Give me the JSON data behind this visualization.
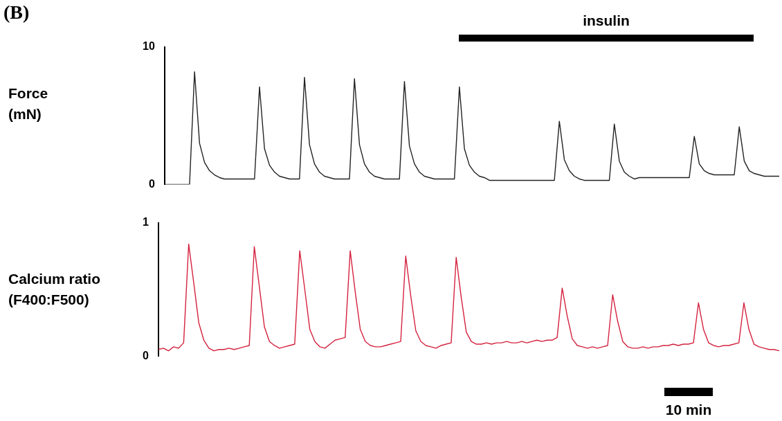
{
  "chart_data": [
    {
      "type": "line",
      "title": "(B)",
      "ylabel": "Force\n(mN)",
      "ylim": [
        0,
        10
      ],
      "yticks": [
        0,
        10
      ],
      "tick_labels": "y",
      "marker": "none",
      "line_style": "solid",
      "annotations": [
        "insulin"
      ],
      "categories": [
        null,
        null,
        null,
        null,
        null,
        null,
        null,
        null,
        null,
        null,
        null,
        null,
        null,
        null,
        null,
        null,
        null,
        null,
        null,
        null,
        null,
        null,
        null,
        null,
        null,
        null,
        null,
        null,
        null,
        null,
        null,
        null,
        null,
        null,
        null,
        null,
        null,
        null,
        null,
        null,
        null,
        null,
        null,
        null,
        null,
        null,
        null,
        null,
        null,
        null,
        null,
        null,
        null,
        null,
        null,
        null,
        null,
        null,
        null,
        null,
        null,
        null,
        null,
        null,
        null,
        null,
        null,
        null,
        null,
        null,
        null,
        null,
        null,
        null,
        null,
        null,
        null,
        null,
        null,
        null,
        null,
        null,
        null,
        null,
        null,
        null,
        null,
        null,
        null,
        null,
        null,
        null,
        null,
        null,
        null,
        null,
        null,
        null,
        null,
        null,
        null,
        null,
        null,
        null,
        null,
        null,
        null,
        null,
        null,
        null,
        null,
        null,
        null,
        null,
        null,
        null,
        null,
        null,
        null,
        null,
        null,
        null,
        null,
        null
      ],
      "series": [
        {
          "color": "#222222",
          "values": [
            0,
            0,
            0,
            0,
            0,
            0,
            8.2,
            3.0,
            1.6,
            1.0,
            0.7,
            0.5,
            0.4,
            0.4,
            0.4,
            0.4,
            0.4,
            0.4,
            0.4,
            7.1,
            2.6,
            1.4,
            0.9,
            0.6,
            0.5,
            0.4,
            0.4,
            0.4,
            7.8,
            2.9,
            1.5,
            0.9,
            0.6,
            0.5,
            0.4,
            0.4,
            0.4,
            0.4,
            7.7,
            2.9,
            1.5,
            0.9,
            0.6,
            0.5,
            0.4,
            0.4,
            0.4,
            0.4,
            7.5,
            2.8,
            1.5,
            0.9,
            0.6,
            0.5,
            0.4,
            0.4,
            0.4,
            0.4,
            0.4,
            7.1,
            2.6,
            1.4,
            0.9,
            0.6,
            0.5,
            0.3,
            0.3,
            0.3,
            0.3,
            0.3,
            0.3,
            0.3,
            0.3,
            0.3,
            0.3,
            0.3,
            0.3,
            0.3,
            0.3,
            4.6,
            1.8,
            1.0,
            0.6,
            0.4,
            0.3,
            0.3,
            0.3,
            0.3,
            0.3,
            0.3,
            4.4,
            1.7,
            0.9,
            0.6,
            0.4,
            0.5,
            0.5,
            0.5,
            0.5,
            0.5,
            0.5,
            0.5,
            0.5,
            0.5,
            0.5,
            0.5,
            3.5,
            1.5,
            1.0,
            0.8,
            0.7,
            0.7,
            0.7,
            0.7,
            0.7,
            4.2,
            1.7,
            1.0,
            0.8,
            0.7,
            0.6,
            0.6,
            0.6,
            0.6
          ]
        }
      ]
    },
    {
      "type": "line",
      "ylabel": "Calcium ratio\n(F400:F500)",
      "ylim": [
        0,
        1
      ],
      "yticks": [
        0,
        1
      ],
      "tick_labels": "y",
      "marker": "none",
      "line_style": "solid",
      "annotations": [
        "10 min"
      ],
      "categories": [
        null,
        null,
        null,
        null,
        null,
        null,
        null,
        null,
        null,
        null,
        null,
        null,
        null,
        null,
        null,
        null,
        null,
        null,
        null,
        null,
        null,
        null,
        null,
        null,
        null,
        null,
        null,
        null,
        null,
        null,
        null,
        null,
        null,
        null,
        null,
        null,
        null,
        null,
        null,
        null,
        null,
        null,
        null,
        null,
        null,
        null,
        null,
        null,
        null,
        null,
        null,
        null,
        null,
        null,
        null,
        null,
        null,
        null,
        null,
        null,
        null,
        null,
        null,
        null,
        null,
        null,
        null,
        null,
        null,
        null,
        null,
        null,
        null,
        null,
        null,
        null,
        null,
        null,
        null,
        null,
        null,
        null,
        null,
        null,
        null,
        null,
        null,
        null,
        null,
        null,
        null,
        null,
        null,
        null,
        null,
        null,
        null,
        null,
        null,
        null,
        null,
        null,
        null,
        null,
        null,
        null,
        null,
        null,
        null,
        null,
        null,
        null,
        null,
        null,
        null,
        null,
        null,
        null,
        null,
        null,
        null,
        null,
        null,
        null
      ],
      "series": [
        {
          "color": "#d4213d",
          "values": [
            0.05,
            0.06,
            0.04,
            0.07,
            0.06,
            0.1,
            0.84,
            0.55,
            0.25,
            0.12,
            0.06,
            0.04,
            0.05,
            0.05,
            0.06,
            0.05,
            0.06,
            0.07,
            0.08,
            0.82,
            0.52,
            0.22,
            0.11,
            0.08,
            0.06,
            0.07,
            0.08,
            0.09,
            0.79,
            0.5,
            0.2,
            0.11,
            0.07,
            0.06,
            0.09,
            0.12,
            0.13,
            0.14,
            0.79,
            0.48,
            0.2,
            0.11,
            0.08,
            0.07,
            0.07,
            0.08,
            0.09,
            0.1,
            0.11,
            0.75,
            0.45,
            0.19,
            0.11,
            0.08,
            0.07,
            0.06,
            0.08,
            0.09,
            0.1,
            0.74,
            0.44,
            0.18,
            0.11,
            0.09,
            0.09,
            0.1,
            0.09,
            0.1,
            0.1,
            0.11,
            0.1,
            0.1,
            0.11,
            0.1,
            0.11,
            0.12,
            0.11,
            0.12,
            0.12,
            0.14,
            0.51,
            0.3,
            0.13,
            0.08,
            0.07,
            0.06,
            0.07,
            0.06,
            0.07,
            0.08,
            0.46,
            0.26,
            0.11,
            0.07,
            0.06,
            0.06,
            0.07,
            0.06,
            0.07,
            0.07,
            0.08,
            0.08,
            0.09,
            0.08,
            0.09,
            0.09,
            0.1,
            0.4,
            0.2,
            0.1,
            0.08,
            0.07,
            0.08,
            0.08,
            0.09,
            0.1,
            0.4,
            0.2,
            0.09,
            0.07,
            0.06,
            0.05,
            0.05,
            0.04
          ]
        }
      ]
    }
  ]
}
